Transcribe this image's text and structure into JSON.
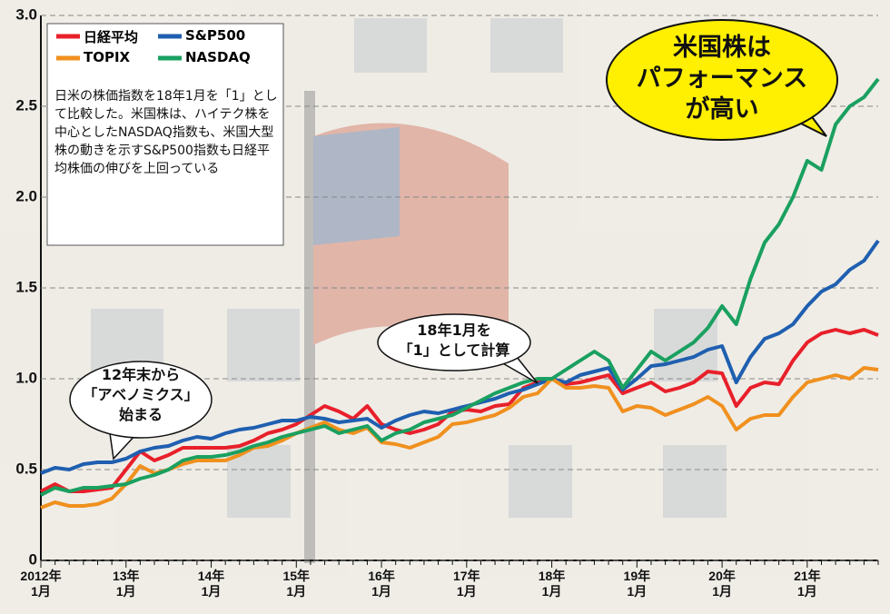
{
  "chart_data": {
    "type": "line",
    "categories": [
      "2012年\n1月",
      null,
      null,
      null,
      null,
      null,
      "13年\n1月",
      null,
      null,
      null,
      null,
      null,
      "14年\n1月",
      null,
      null,
      null,
      null,
      null,
      "15年\n1月",
      null,
      null,
      null,
      null,
      null,
      "16年\n1月",
      null,
      null,
      null,
      null,
      null,
      "17年\n1月",
      null,
      null,
      null,
      null,
      null,
      "18年\n1月",
      null,
      null,
      null,
      null,
      null,
      "19年\n1月",
      null,
      null,
      null,
      null,
      null,
      "20年\n1月",
      null,
      null,
      null,
      null,
      null,
      "21年\n1月",
      null,
      null,
      null,
      null,
      null
    ],
    "series": [
      {
        "name": "日経平均",
        "color": "#e8202a",
        "values": [
          0.38,
          0.42,
          0.38,
          0.38,
          0.39,
          0.4,
          0.5,
          0.6,
          0.55,
          0.58,
          0.62,
          0.62,
          0.62,
          0.62,
          0.63,
          0.66,
          0.7,
          0.72,
          0.75,
          0.8,
          0.85,
          0.82,
          0.78,
          0.85,
          0.75,
          0.72,
          0.7,
          0.72,
          0.75,
          0.82,
          0.83,
          0.82,
          0.85,
          0.86,
          0.95,
          0.98,
          1.0,
          0.97,
          0.98,
          1.0,
          1.02,
          0.92,
          0.95,
          0.98,
          0.93,
          0.95,
          0.98,
          1.04,
          1.03,
          0.85,
          0.95,
          0.98,
          0.97,
          1.1,
          1.2,
          1.25,
          1.27,
          1.25,
          1.27,
          1.24
        ]
      },
      {
        "name": "S&P500",
        "color": "#1f5fb0",
        "values": [
          0.48,
          0.51,
          0.5,
          0.53,
          0.54,
          0.54,
          0.56,
          0.6,
          0.62,
          0.63,
          0.66,
          0.68,
          0.67,
          0.7,
          0.72,
          0.73,
          0.75,
          0.77,
          0.77,
          0.79,
          0.78,
          0.76,
          0.77,
          0.78,
          0.73,
          0.77,
          0.8,
          0.82,
          0.81,
          0.83,
          0.85,
          0.87,
          0.89,
          0.92,
          0.94,
          0.97,
          1.0,
          0.98,
          1.02,
          1.04,
          1.06,
          0.94,
          1.0,
          1.07,
          1.08,
          1.1,
          1.12,
          1.16,
          1.18,
          0.98,
          1.12,
          1.22,
          1.25,
          1.3,
          1.4,
          1.48,
          1.52,
          1.6,
          1.65,
          1.76
        ]
      },
      {
        "name": "TOPIX",
        "color": "#f0901e",
        "values": [
          0.29,
          0.32,
          0.3,
          0.3,
          0.31,
          0.34,
          0.42,
          0.52,
          0.48,
          0.5,
          0.53,
          0.55,
          0.55,
          0.55,
          0.58,
          0.62,
          0.63,
          0.66,
          0.7,
          0.73,
          0.76,
          0.72,
          0.7,
          0.73,
          0.65,
          0.64,
          0.62,
          0.65,
          0.68,
          0.75,
          0.76,
          0.78,
          0.8,
          0.84,
          0.9,
          0.92,
          1.0,
          0.95,
          0.95,
          0.96,
          0.95,
          0.82,
          0.85,
          0.84,
          0.8,
          0.83,
          0.86,
          0.9,
          0.85,
          0.72,
          0.78,
          0.8,
          0.8,
          0.9,
          0.98,
          1.0,
          1.02,
          1.0,
          1.06,
          1.05
        ]
      },
      {
        "name": "NASDAQ",
        "color": "#1aa060",
        "values": [
          0.36,
          0.4,
          0.38,
          0.4,
          0.4,
          0.41,
          0.42,
          0.45,
          0.47,
          0.5,
          0.55,
          0.57,
          0.57,
          0.58,
          0.6,
          0.63,
          0.65,
          0.68,
          0.7,
          0.72,
          0.74,
          0.7,
          0.72,
          0.74,
          0.66,
          0.7,
          0.72,
          0.76,
          0.78,
          0.8,
          0.84,
          0.88,
          0.92,
          0.95,
          0.98,
          1.0,
          1.0,
          1.05,
          1.1,
          1.15,
          1.1,
          0.95,
          1.05,
          1.15,
          1.1,
          1.15,
          1.2,
          1.28,
          1.4,
          1.3,
          1.55,
          1.75,
          1.85,
          2.0,
          2.2,
          2.15,
          2.4,
          2.5,
          2.55,
          2.65
        ]
      }
    ],
    "ylim": [
      0,
      3
    ],
    "yticks": [
      0,
      0.5,
      {
        "value": 1,
        "label": "1.0"
      },
      1.5,
      {
        "value": 2,
        "label": "2.0"
      },
      2.5,
      {
        "value": 3,
        "label": "3.0"
      }
    ],
    "grid": true,
    "annotations": {
      "note": "日米の株価指数を18年1月を「1」として比較した。米国株は、ハイテク株を中心としたNASDAQ指数も、米国大型株の動きを示すS&P500指数も日経平均株価の伸びを上回っている",
      "abenomics": "12年末から\n「アベノミクス」\n始まる",
      "base": "18年1月を\n「1」として計算",
      "headline": "米国株は\nパフォーマンス\nが高い"
    }
  }
}
